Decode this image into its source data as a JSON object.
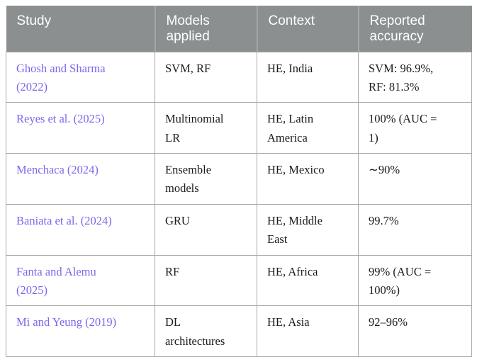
{
  "colors": {
    "header_background": "#8b8f90",
    "header_text": "#ffffff",
    "citation_link": "#7b68ee",
    "cell_border": "#a9a9a9",
    "body_text": "#1b1b1b"
  },
  "table": {
    "columns": [
      {
        "key": "study",
        "label": "Study"
      },
      {
        "key": "models",
        "label": "Models\napplied"
      },
      {
        "key": "context",
        "label": "Context"
      },
      {
        "key": "accuracy",
        "label": "Reported\naccuracy"
      }
    ],
    "rows": [
      {
        "study": "Ghosh and Sharma\n(2022)",
        "models": "SVM, RF",
        "context": "HE, India",
        "accuracy": "SVM: 96.9%,\nRF: 81.3%"
      },
      {
        "study": "Reyes et al. (2025)",
        "models": "Multinomial\nLR",
        "context": "HE, Latin\nAmerica",
        "accuracy": "100% (AUC =\n1)"
      },
      {
        "study": "Menchaca (2024)",
        "models": "Ensemble\nmodels",
        "context": "HE, Mexico",
        "accuracy": "∼90%"
      },
      {
        "study": "Baniata et al. (2024)",
        "models": "GRU",
        "context": "HE, Middle\nEast",
        "accuracy": "99.7%"
      },
      {
        "study": "Fanta and Alemu\n(2025)",
        "models": "RF",
        "context": "HE, Africa",
        "accuracy": "99% (AUC =\n100%)"
      },
      {
        "study": "Mi and Yeung (2019)",
        "models": "DL\narchitectures",
        "context": "HE, Asia",
        "accuracy": "92–96%"
      }
    ]
  }
}
